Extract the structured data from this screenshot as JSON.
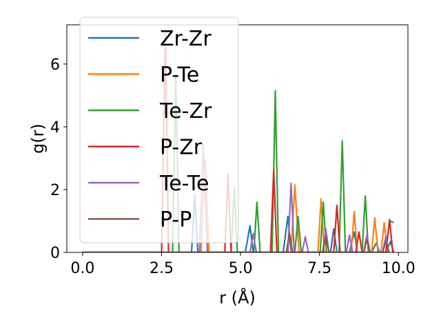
{
  "chart_data": {
    "type": "line",
    "title": "",
    "xlabel": "r (Å)",
    "ylabel": "g(r)",
    "xlim": [
      -0.5,
      10.3
    ],
    "ylim": [
      0,
      7.25
    ],
    "xticks": [
      0.0,
      2.5,
      5.0,
      7.5,
      10.0
    ],
    "xtick_labels": [
      "0.0",
      "2.5",
      "5.0",
      "7.5",
      "10.0"
    ],
    "yticks": [
      0,
      2,
      4,
      6
    ],
    "ytick_labels": [
      "0",
      "2",
      "4",
      "6"
    ],
    "grid": false,
    "legend": {
      "position": "top-left",
      "opacity": 0.8
    },
    "series": [
      {
        "name": "Zr-Zr",
        "color": "#1f77b4",
        "points": [
          [
            0,
            0
          ],
          [
            3.45,
            0
          ],
          [
            3.55,
            1.85
          ],
          [
            3.65,
            0
          ],
          [
            5.15,
            0
          ],
          [
            5.3,
            0.85
          ],
          [
            5.4,
            0
          ],
          [
            6.35,
            0
          ],
          [
            6.5,
            1.15
          ],
          [
            6.6,
            0
          ],
          [
            7.85,
            0
          ],
          [
            7.95,
            0.75
          ],
          [
            8.05,
            0
          ],
          [
            8.45,
            0
          ],
          [
            8.6,
            0.65
          ],
          [
            8.7,
            0
          ],
          [
            9.15,
            0
          ],
          [
            9.3,
            0.3
          ],
          [
            9.4,
            0
          ],
          [
            9.6,
            0
          ],
          [
            9.75,
            0.35
          ],
          [
            9.85,
            0
          ]
        ]
      },
      {
        "name": "P-Te",
        "color": "#ff7f0e",
        "points": [
          [
            0,
            0
          ],
          [
            3.75,
            0
          ],
          [
            3.88,
            2.95
          ],
          [
            4.0,
            0
          ],
          [
            6.6,
            0
          ],
          [
            6.72,
            2.15
          ],
          [
            6.85,
            0
          ],
          [
            7.45,
            0
          ],
          [
            7.55,
            1.7
          ],
          [
            7.65,
            0
          ],
          [
            8.5,
            0
          ],
          [
            8.6,
            1.3
          ],
          [
            8.7,
            0
          ],
          [
            9.15,
            0
          ],
          [
            9.25,
            1.1
          ],
          [
            9.35,
            0
          ],
          [
            9.45,
            0
          ],
          [
            9.55,
            0.95
          ],
          [
            9.65,
            0
          ]
        ]
      },
      {
        "name": "Te-Zr",
        "color": "#2ca02c",
        "points": [
          [
            0,
            0
          ],
          [
            2.85,
            0
          ],
          [
            2.95,
            5.6
          ],
          [
            3.05,
            0
          ],
          [
            4.7,
            0
          ],
          [
            4.8,
            2.05
          ],
          [
            4.9,
            0
          ],
          [
            5.42,
            0
          ],
          [
            5.52,
            1.6
          ],
          [
            5.62,
            0
          ],
          [
            6.0,
            0
          ],
          [
            6.1,
            5.15
          ],
          [
            6.2,
            0
          ],
          [
            6.72,
            0
          ],
          [
            6.82,
            1.15
          ],
          [
            6.92,
            0
          ],
          [
            7.52,
            0
          ],
          [
            7.62,
            1.6
          ],
          [
            7.72,
            0
          ],
          [
            8.12,
            0
          ],
          [
            8.22,
            3.55
          ],
          [
            8.32,
            0
          ],
          [
            8.85,
            0
          ],
          [
            8.95,
            1.8
          ],
          [
            9.05,
            0
          ],
          [
            9.6,
            0
          ],
          [
            9.72,
            1.0
          ],
          [
            9.85,
            0.95
          ]
        ]
      },
      {
        "name": "P-Zr",
        "color": "#d62728",
        "points": [
          [
            0,
            0
          ],
          [
            2.5,
            0
          ],
          [
            2.62,
            6.95
          ],
          [
            2.72,
            0
          ],
          [
            4.5,
            0
          ],
          [
            4.6,
            2.5
          ],
          [
            4.7,
            0
          ],
          [
            5.95,
            0
          ],
          [
            6.05,
            2.65
          ],
          [
            6.15,
            0
          ],
          [
            7.95,
            0
          ],
          [
            8.05,
            1.5
          ],
          [
            8.15,
            0
          ],
          [
            8.65,
            0
          ],
          [
            8.75,
            0.65
          ],
          [
            8.85,
            0
          ],
          [
            9.6,
            0
          ],
          [
            9.72,
            1.05
          ],
          [
            9.82,
            0
          ]
        ]
      },
      {
        "name": "Te-Te",
        "color": "#9467bd",
        "points": [
          [
            0,
            0
          ],
          [
            3.7,
            0
          ],
          [
            3.82,
            3.45
          ],
          [
            3.95,
            0
          ],
          [
            5.3,
            0
          ],
          [
            5.4,
            0.6
          ],
          [
            5.5,
            0
          ],
          [
            6.5,
            0
          ],
          [
            6.6,
            2.2
          ],
          [
            6.7,
            0
          ],
          [
            6.95,
            0
          ],
          [
            7.05,
            0.5
          ],
          [
            7.15,
            0
          ],
          [
            7.6,
            0
          ],
          [
            7.7,
            0.75
          ],
          [
            7.8,
            0
          ],
          [
            8.35,
            0
          ],
          [
            8.45,
            0.55
          ],
          [
            8.55,
            0
          ],
          [
            8.9,
            0
          ],
          [
            9.0,
            0.55
          ],
          [
            9.1,
            0
          ],
          [
            9.5,
            0
          ],
          [
            9.6,
            0.5
          ],
          [
            9.7,
            0
          ]
        ]
      },
      {
        "name": "P-P",
        "color": "#8c564b",
        "points": [
          [
            0,
            0
          ],
          [
            6.45,
            0
          ],
          [
            6.55,
            0.6
          ],
          [
            6.65,
            0
          ],
          [
            7.6,
            0
          ],
          [
            7.7,
            0.5
          ],
          [
            7.8,
            0
          ],
          [
            8.9,
            0
          ],
          [
            9.0,
            0.4
          ],
          [
            9.1,
            0
          ],
          [
            9.5,
            0
          ],
          [
            9.6,
            0.35
          ],
          [
            9.7,
            0
          ]
        ]
      }
    ]
  }
}
